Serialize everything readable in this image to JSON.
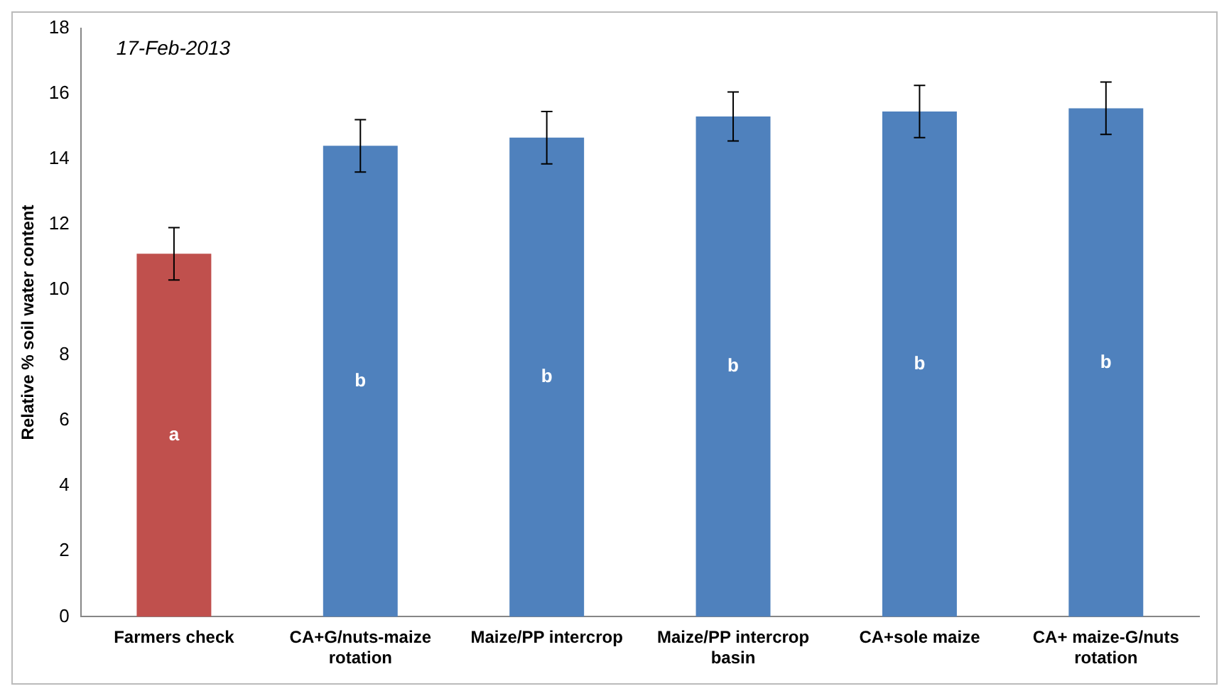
{
  "chart_data": {
    "type": "bar",
    "ylabel": "Relative % soil water content",
    "categories": [
      "Farmers check",
      "CA+G/nuts-maize rotation",
      "Maize/PP intercrop",
      "Maize/PP intercrop basin",
      "CA+sole maize",
      "CA+ maize-G/nuts rotation"
    ],
    "values": [
      11.1,
      14.4,
      14.65,
      15.3,
      15.45,
      15.55
    ],
    "errors": [
      0.8,
      0.8,
      0.8,
      0.75,
      0.8,
      0.8
    ],
    "colors": [
      "#c0504d",
      "#4f81bd",
      "#4f81bd",
      "#4f81bd",
      "#4f81bd",
      "#4f81bd"
    ],
    "ylim": [
      0,
      18
    ],
    "yticks": [
      0,
      2,
      4,
      6,
      8,
      10,
      12,
      14,
      16,
      18
    ],
    "grid": false,
    "legend": false,
    "annotations": [
      "17-Feb-2013",
      "a",
      "b",
      "b",
      "b",
      "b",
      "b"
    ]
  }
}
